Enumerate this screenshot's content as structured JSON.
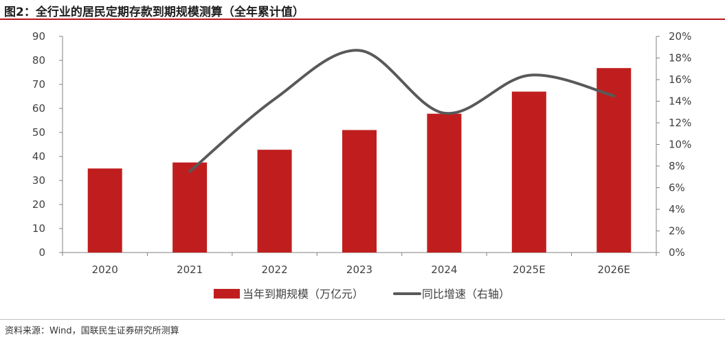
{
  "title": "图2：全行业的居民定期存款到期规模测算（全年累计值）",
  "source": "资料来源：Wind，国联民生证券研究所测算",
  "colors": {
    "bar": "#c01e1e",
    "line": "#595959",
    "axis": "#808080",
    "title_rule": "#b9141a"
  },
  "chart_data": {
    "type": "bar",
    "categories": [
      "2020",
      "2021",
      "2022",
      "2023",
      "2024",
      "2025E",
      "2026E"
    ],
    "series": [
      {
        "name": "当年到期规模（万亿元）",
        "type": "bar",
        "axis": "left",
        "values": [
          35,
          37.5,
          42.8,
          51,
          57.8,
          67,
          76.8
        ]
      },
      {
        "name": "同比增速（右轴）",
        "type": "line",
        "axis": "right",
        "values": [
          null,
          7.5,
          14.2,
          18.7,
          12.9,
          16.4,
          14.5
        ]
      }
    ],
    "ylim": [
      0,
      90
    ],
    "y_ticks": [
      "0",
      "10",
      "20",
      "30",
      "40",
      "50",
      "60",
      "70",
      "80",
      "90"
    ],
    "y2lim": [
      0,
      20
    ],
    "y2_ticks": [
      "0%",
      "2%",
      "4%",
      "6%",
      "8%",
      "10%",
      "12%",
      "14%",
      "16%",
      "18%",
      "20%"
    ],
    "legend": [
      "当年到期规模（万亿元）",
      "同比增速（右轴）"
    ],
    "legend_position": "bottom-center",
    "grid": false
  }
}
